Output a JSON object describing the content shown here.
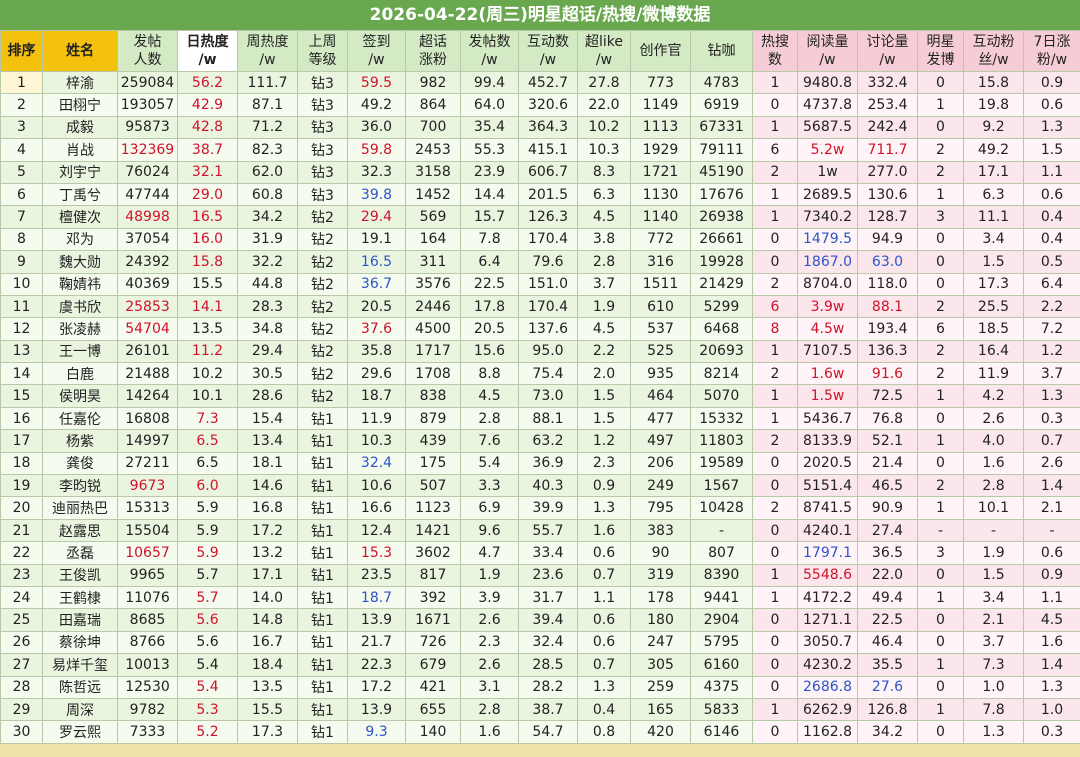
{
  "header": {
    "title": "2026-04-22(周三)明星超话/热搜/微博数据"
  },
  "table": {
    "columns": [
      [
        "排序"
      ],
      [
        "姓名"
      ],
      [
        "发帖",
        "人数"
      ],
      [
        "日热度",
        "/w"
      ],
      [
        "周热度",
        "/w"
      ],
      [
        "上周",
        "等级"
      ],
      [
        "签到",
        "/w"
      ],
      [
        "超话",
        "涨粉"
      ],
      [
        "发帖数",
        "/w"
      ],
      [
        "互动数",
        "/w"
      ],
      [
        "超like",
        "/w"
      ],
      [
        "创作官"
      ],
      [
        "钻咖"
      ],
      [
        "热搜",
        "数"
      ],
      [
        "阅读量",
        "/w"
      ],
      [
        "讨论量",
        "/w"
      ],
      [
        "明星",
        "发博"
      ],
      [
        "互动粉",
        "丝/w"
      ],
      [
        "7日涨",
        "粉/w"
      ]
    ],
    "rows": [
      [
        "1",
        "梓渝",
        "259084",
        "56.2",
        "111.7",
        "钻3",
        "59.5",
        "982",
        "99.4",
        "452.7",
        "27.8",
        "773",
        "4783",
        "1",
        "9480.8",
        "332.4",
        "0",
        "15.8",
        "0.9"
      ],
      [
        "2",
        "田栩宁",
        "193057",
        "42.9",
        "87.1",
        "钻3",
        "49.2",
        "864",
        "64.0",
        "320.6",
        "22.0",
        "1149",
        "6919",
        "0",
        "4737.8",
        "253.4",
        "1",
        "19.8",
        "0.6"
      ],
      [
        "3",
        "成毅",
        "95873",
        "42.8",
        "71.2",
        "钻3",
        "36.0",
        "700",
        "35.4",
        "364.3",
        "10.2",
        "1113",
        "67331",
        "1",
        "5687.5",
        "242.4",
        "0",
        "9.2",
        "1.3"
      ],
      [
        "4",
        "肖战",
        "132369",
        "38.7",
        "82.3",
        "钻3",
        "59.8",
        "2453",
        "55.3",
        "415.1",
        "10.3",
        "1929",
        "79111",
        "6",
        "5.2w",
        "711.7",
        "2",
        "49.2",
        "1.5"
      ],
      [
        "5",
        "刘宇宁",
        "76024",
        "32.1",
        "62.0",
        "钻3",
        "32.3",
        "3158",
        "23.9",
        "606.7",
        "8.3",
        "1721",
        "45190",
        "2",
        "1w",
        "277.0",
        "2",
        "17.1",
        "1.1"
      ],
      [
        "6",
        "丁禹兮",
        "47744",
        "29.0",
        "60.8",
        "钻3",
        "39.8",
        "1452",
        "14.4",
        "201.5",
        "6.3",
        "1130",
        "17676",
        "1",
        "2689.5",
        "130.6",
        "1",
        "6.3",
        "0.6"
      ],
      [
        "7",
        "檀健次",
        "48998",
        "16.5",
        "34.2",
        "钻2",
        "29.4",
        "569",
        "15.7",
        "126.3",
        "4.5",
        "1140",
        "26938",
        "1",
        "7340.2",
        "128.7",
        "3",
        "11.1",
        "0.4"
      ],
      [
        "8",
        "邓为",
        "37054",
        "16.0",
        "31.9",
        "钻2",
        "19.1",
        "164",
        "7.8",
        "170.4",
        "3.8",
        "772",
        "26661",
        "0",
        "1479.5",
        "94.9",
        "0",
        "3.4",
        "0.4"
      ],
      [
        "9",
        "魏大勋",
        "24392",
        "15.8",
        "32.2",
        "钻2",
        "16.5",
        "311",
        "6.4",
        "79.6",
        "2.8",
        "316",
        "19928",
        "0",
        "1867.0",
        "63.0",
        "0",
        "1.5",
        "0.5"
      ],
      [
        "10",
        "鞠婧祎",
        "40369",
        "15.5",
        "44.8",
        "钻2",
        "36.7",
        "3576",
        "22.5",
        "151.0",
        "3.7",
        "1511",
        "21429",
        "2",
        "8704.0",
        "118.0",
        "0",
        "17.3",
        "6.4"
      ],
      [
        "11",
        "虞书欣",
        "25853",
        "14.1",
        "28.3",
        "钻2",
        "20.5",
        "2446",
        "17.8",
        "170.4",
        "1.9",
        "610",
        "5299",
        "6",
        "3.9w",
        "88.1",
        "2",
        "25.5",
        "2.2"
      ],
      [
        "12",
        "张凌赫",
        "54704",
        "13.5",
        "34.8",
        "钻2",
        "37.6",
        "4500",
        "20.5",
        "137.6",
        "4.5",
        "537",
        "6468",
        "8",
        "4.5w",
        "193.4",
        "6",
        "18.5",
        "7.2"
      ],
      [
        "13",
        "王一博",
        "26101",
        "11.2",
        "29.4",
        "钻2",
        "35.8",
        "1717",
        "15.6",
        "95.0",
        "2.2",
        "525",
        "20693",
        "1",
        "7107.5",
        "136.3",
        "2",
        "16.4",
        "1.2"
      ],
      [
        "14",
        "白鹿",
        "21488",
        "10.2",
        "30.5",
        "钻2",
        "29.6",
        "1708",
        "8.8",
        "75.4",
        "2.0",
        "935",
        "8214",
        "2",
        "1.6w",
        "91.6",
        "2",
        "11.9",
        "3.7"
      ],
      [
        "15",
        "侯明昊",
        "14264",
        "10.1",
        "28.6",
        "钻2",
        "18.7",
        "838",
        "4.5",
        "73.0",
        "1.5",
        "464",
        "5070",
        "1",
        "1.5w",
        "72.5",
        "1",
        "4.2",
        "1.3"
      ],
      [
        "16",
        "任嘉伦",
        "16808",
        "7.3",
        "15.4",
        "钻1",
        "11.9",
        "879",
        "2.8",
        "88.1",
        "1.5",
        "477",
        "15332",
        "1",
        "5436.7",
        "76.8",
        "0",
        "2.6",
        "0.3"
      ],
      [
        "17",
        "杨紫",
        "14997",
        "6.5",
        "13.4",
        "钻1",
        "10.3",
        "439",
        "7.6",
        "63.2",
        "1.2",
        "497",
        "11803",
        "2",
        "8133.9",
        "52.1",
        "1",
        "4.0",
        "0.7"
      ],
      [
        "18",
        "龚俊",
        "27211",
        "6.5",
        "18.1",
        "钻1",
        "32.4",
        "175",
        "5.4",
        "36.9",
        "2.3",
        "206",
        "19589",
        "0",
        "2020.5",
        "21.4",
        "0",
        "1.6",
        "2.6"
      ],
      [
        "19",
        "李昀锐",
        "9673",
        "6.0",
        "14.6",
        "钻1",
        "10.6",
        "507",
        "3.3",
        "40.3",
        "0.9",
        "249",
        "1567",
        "0",
        "5151.4",
        "46.5",
        "2",
        "2.8",
        "1.4"
      ],
      [
        "20",
        "迪丽热巴",
        "15313",
        "5.9",
        "16.8",
        "钻1",
        "16.6",
        "1123",
        "6.9",
        "39.9",
        "1.3",
        "795",
        "10428",
        "2",
        "8741.5",
        "90.9",
        "1",
        "10.1",
        "2.1"
      ],
      [
        "21",
        "赵露思",
        "15504",
        "5.9",
        "17.2",
        "钻1",
        "12.4",
        "1421",
        "9.6",
        "55.7",
        "1.6",
        "383",
        "-",
        "0",
        "4240.1",
        "27.4",
        "-",
        "-",
        "-"
      ],
      [
        "22",
        "丞磊",
        "10657",
        "5.9",
        "13.2",
        "钻1",
        "15.3",
        "3602",
        "4.7",
        "33.4",
        "0.6",
        "90",
        "807",
        "0",
        "1797.1",
        "36.5",
        "3",
        "1.9",
        "0.6"
      ],
      [
        "23",
        "王俊凯",
        "9965",
        "5.7",
        "17.1",
        "钻1",
        "23.5",
        "817",
        "1.9",
        "23.6",
        "0.7",
        "319",
        "8390",
        "1",
        "5548.6",
        "22.0",
        "0",
        "1.5",
        "0.9"
      ],
      [
        "24",
        "王鹤棣",
        "11076",
        "5.7",
        "14.0",
        "钻1",
        "18.7",
        "392",
        "3.9",
        "31.7",
        "1.1",
        "178",
        "9441",
        "1",
        "4172.2",
        "49.4",
        "1",
        "3.4",
        "1.1"
      ],
      [
        "25",
        "田嘉瑞",
        "8685",
        "5.6",
        "14.8",
        "钻1",
        "13.9",
        "1671",
        "2.6",
        "39.4",
        "0.6",
        "180",
        "2904",
        "0",
        "1271.1",
        "22.5",
        "0",
        "2.1",
        "4.5"
      ],
      [
        "26",
        "蔡徐坤",
        "8766",
        "5.6",
        "16.7",
        "钻1",
        "21.7",
        "726",
        "2.3",
        "32.4",
        "0.6",
        "247",
        "5795",
        "0",
        "3050.7",
        "46.4",
        "0",
        "3.7",
        "1.6"
      ],
      [
        "27",
        "易烊千玺",
        "10013",
        "5.4",
        "18.4",
        "钻1",
        "22.3",
        "679",
        "2.6",
        "28.5",
        "0.7",
        "305",
        "6160",
        "0",
        "4230.2",
        "35.5",
        "1",
        "7.3",
        "1.4"
      ],
      [
        "28",
        "陈哲远",
        "12530",
        "5.4",
        "13.5",
        "钻1",
        "17.2",
        "421",
        "3.1",
        "28.2",
        "1.3",
        "259",
        "4375",
        "0",
        "2686.8",
        "27.6",
        "0",
        "1.0",
        "1.3"
      ],
      [
        "29",
        "周深",
        "9782",
        "5.3",
        "15.5",
        "钻1",
        "13.9",
        "655",
        "2.8",
        "38.7",
        "0.4",
        "165",
        "5833",
        "1",
        "6262.9",
        "126.8",
        "1",
        "7.8",
        "1.0"
      ],
      [
        "30",
        "罗云熙",
        "7333",
        "5.2",
        "17.3",
        "钻1",
        "9.3",
        "140",
        "1.6",
        "54.7",
        "0.8",
        "420",
        "6146",
        "0",
        "1162.8",
        "34.2",
        "0",
        "1.3",
        "0.3"
      ]
    ]
  }
}
